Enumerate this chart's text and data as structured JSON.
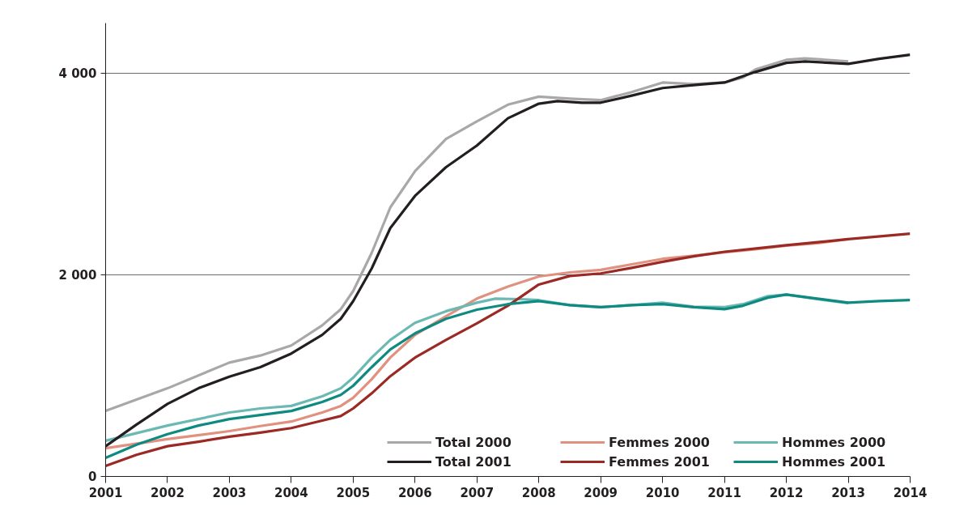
{
  "chart_data": {
    "type": "line",
    "xlim": [
      2001,
      2014
    ],
    "xticks": [
      2001,
      2002,
      2003,
      2004,
      2005,
      2006,
      2007,
      2008,
      2009,
      2010,
      2011,
      2012,
      2013,
      2014
    ],
    "ylim": [
      0,
      4500
    ],
    "yticks": [
      {
        "value": 0,
        "label": "0"
      },
      {
        "value": 2000,
        "label": "2 000"
      },
      {
        "value": 4000,
        "label": "4 000"
      }
    ],
    "grid": "y",
    "legend": "bottom right",
    "marker": "none",
    "line_style": "solid",
    "series": [
      {
        "name": "Total 2000",
        "color": "#a8a8aa",
        "x": [
          2001,
          2002,
          2003,
          2003.5,
          2004,
          2004.5,
          2004.8,
          2005,
          2005.3,
          2005.6,
          2006,
          2006.5,
          2007,
          2007.5,
          2008,
          2008.5,
          2009,
          2009.5,
          2010,
          2010.5,
          2011,
          2011.3,
          2011.5,
          2012,
          2012.3,
          2013
        ],
        "values": [
          650,
          875,
          1130,
          1200,
          1300,
          1500,
          1660,
          1840,
          2220,
          2670,
          3030,
          3350,
          3525,
          3690,
          3770,
          3750,
          3735,
          3815,
          3910,
          3895,
          3910,
          3960,
          4040,
          4135,
          4150,
          4120
        ]
      },
      {
        "name": "Femmes 2000",
        "color": "#e0917f",
        "x": [
          2001,
          2002,
          2003,
          2003.5,
          2004,
          2004.5,
          2004.8,
          2005,
          2005.3,
          2005.6,
          2006,
          2006.5,
          2007,
          2007.5,
          2008,
          2008.5,
          2009,
          2009.5,
          2010,
          2010.5,
          2011,
          2011.5,
          2012,
          2012.5,
          2013
        ],
        "values": [
          280,
          370,
          450,
          500,
          545,
          635,
          700,
          780,
          965,
          1180,
          1405,
          1590,
          1765,
          1885,
          1985,
          2025,
          2050,
          2105,
          2160,
          2190,
          2225,
          2255,
          2290,
          2315,
          2355
        ]
      },
      {
        "name": "Hommes 2000",
        "color": "#6cb9b4",
        "x": [
          2001,
          2002,
          2003,
          2003.5,
          2004,
          2004.5,
          2004.8,
          2005,
          2005.3,
          2005.6,
          2006,
          2006.5,
          2007,
          2007.3,
          2007.7,
          2008,
          2008.5,
          2009,
          2009.5,
          2010,
          2010.5,
          2011,
          2011.3,
          2011.7,
          2012,
          2012.5,
          2013
        ],
        "values": [
          355,
          505,
          635,
          675,
          700,
          795,
          875,
          980,
          1180,
          1355,
          1525,
          1640,
          1725,
          1765,
          1760,
          1750,
          1700,
          1680,
          1700,
          1725,
          1685,
          1680,
          1710,
          1790,
          1805,
          1760,
          1720
        ]
      },
      {
        "name": "Total 2001",
        "color": "#231f20",
        "x": [
          2001,
          2001.5,
          2002,
          2002.5,
          2003,
          2003.5,
          2004,
          2004.5,
          2004.8,
          2005,
          2005.3,
          2005.6,
          2006,
          2006.5,
          2007,
          2007.5,
          2008,
          2008.3,
          2008.7,
          2009,
          2009.5,
          2010,
          2010.5,
          2011,
          2011.5,
          2012,
          2012.3,
          2013,
          2013.5,
          2014
        ],
        "values": [
          300,
          515,
          720,
          875,
          990,
          1085,
          1220,
          1405,
          1565,
          1740,
          2065,
          2465,
          2785,
          3070,
          3285,
          3555,
          3700,
          3725,
          3710,
          3710,
          3780,
          3855,
          3885,
          3910,
          4015,
          4105,
          4120,
          4095,
          4145,
          4185
        ]
      },
      {
        "name": "Femmes 2001",
        "color": "#9b2a25",
        "x": [
          2001,
          2001.5,
          2002,
          2002.5,
          2003,
          2003.5,
          2004,
          2004.5,
          2004.8,
          2005,
          2005.3,
          2005.6,
          2006,
          2006.5,
          2007,
          2007.5,
          2008,
          2008.5,
          2009,
          2009.5,
          2010,
          2010.5,
          2011,
          2012,
          2013,
          2014
        ],
        "values": [
          105,
          215,
          300,
          345,
          395,
          435,
          480,
          555,
          600,
          675,
          825,
          995,
          1180,
          1355,
          1520,
          1695,
          1905,
          1990,
          2015,
          2070,
          2130,
          2185,
          2230,
          2295,
          2355,
          2410
        ]
      },
      {
        "name": "Hommes 2001",
        "color": "#0f8a80",
        "x": [
          2001,
          2001.5,
          2002,
          2002.5,
          2003,
          2003.5,
          2004,
          2004.5,
          2004.8,
          2005,
          2005.3,
          2005.6,
          2006,
          2006.5,
          2007,
          2007.5,
          2008,
          2008.5,
          2009,
          2009.5,
          2010,
          2010.5,
          2011,
          2011.3,
          2011.7,
          2012,
          2012.5,
          2013,
          2013.5,
          2014
        ],
        "values": [
          185,
          315,
          420,
          505,
          570,
          610,
          650,
          740,
          810,
          900,
          1085,
          1260,
          1420,
          1565,
          1655,
          1710,
          1740,
          1700,
          1680,
          1700,
          1710,
          1680,
          1660,
          1695,
          1775,
          1805,
          1765,
          1725,
          1740,
          1750
        ]
      }
    ]
  }
}
